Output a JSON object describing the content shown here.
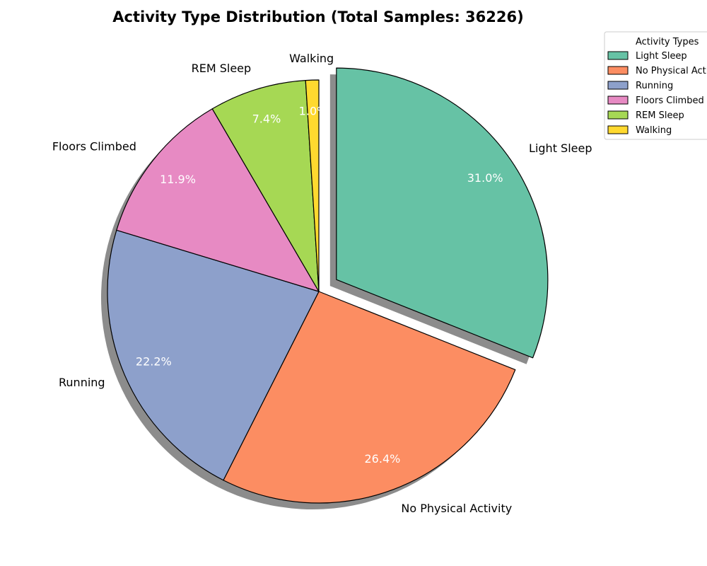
{
  "chart_data": {
    "type": "pie",
    "title": "Activity Type Distribution (Total Samples: 36226)",
    "total_samples": 36226,
    "start_angle_deg": 90,
    "direction": "clockwise",
    "shadow": true,
    "legend": {
      "title": "Activity Types",
      "placement": "top-right"
    },
    "slices": [
      {
        "label": "Light Sleep",
        "percent": 31.0,
        "pct_label": "31.0%",
        "color": "#66c2a5",
        "exploded": true
      },
      {
        "label": "No Physical Activity",
        "percent": 26.4,
        "pct_label": "26.4%",
        "color": "#fc8d62",
        "exploded": false
      },
      {
        "label": "Running",
        "percent": 22.2,
        "pct_label": "22.2%",
        "color": "#8da0cb",
        "exploded": false
      },
      {
        "label": "Floors Climbed",
        "percent": 11.9,
        "pct_label": "11.9%",
        "color": "#e78ac3",
        "exploded": false
      },
      {
        "label": "REM Sleep",
        "percent": 7.4,
        "pct_label": "7.4%",
        "color": "#a6d854",
        "exploded": false
      },
      {
        "label": "Walking",
        "percent": 1.0,
        "pct_label": "1.0%",
        "color": "#ffd92f",
        "exploded": false
      }
    ]
  }
}
